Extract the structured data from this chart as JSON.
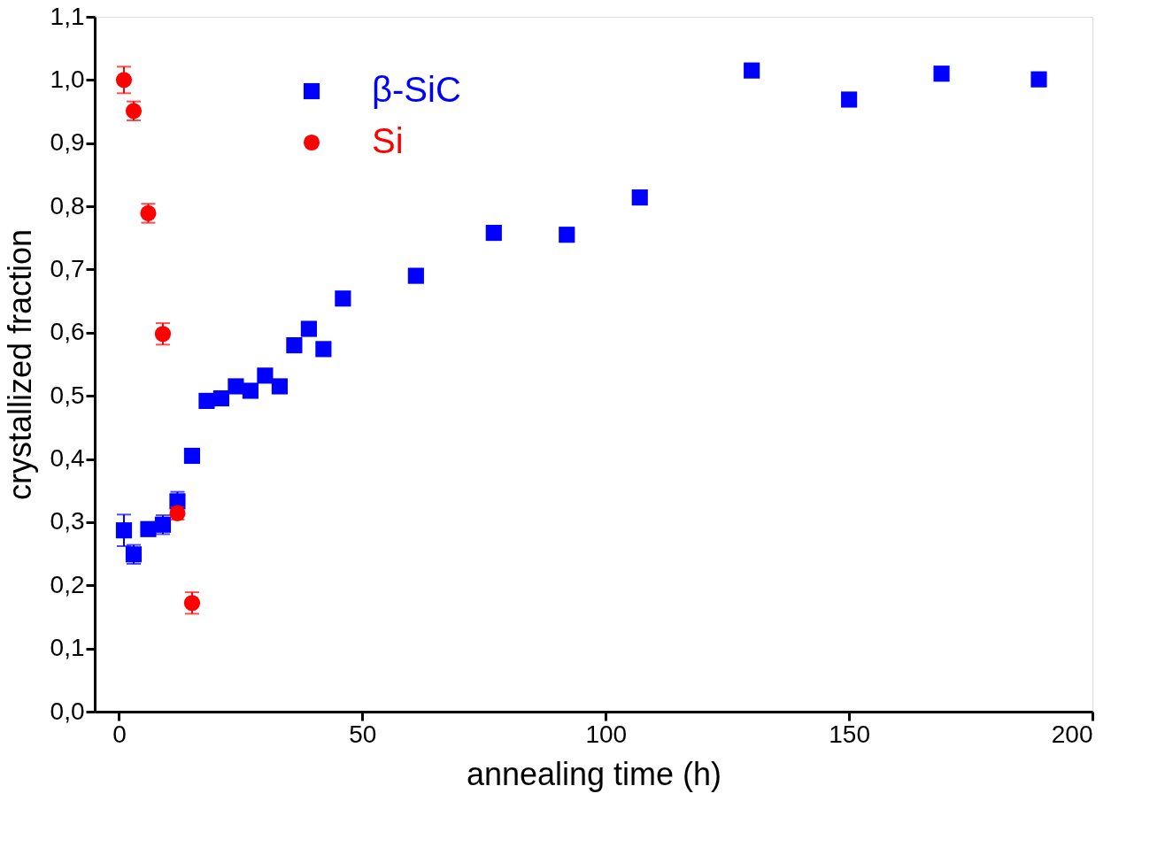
{
  "chart_data": {
    "type": "scatter",
    "xlabel": "annealing time (h)",
    "ylabel": "crystallized fraction",
    "xlim": [
      -5,
      200
    ],
    "xticks": [
      0,
      50,
      100,
      150,
      200
    ],
    "ylim": [
      0,
      1.1
    ],
    "yticks": [
      {
        "value": 0,
        "label": "0,0"
      },
      {
        "value": 0.1,
        "label": "0,1"
      },
      {
        "value": 0.2,
        "label": "0,2"
      },
      {
        "value": 0.3,
        "label": "0,3"
      },
      {
        "value": 0.4,
        "label": "0,4"
      },
      {
        "value": 0.5,
        "label": "0,5"
      },
      {
        "value": 0.6,
        "label": "0,6"
      },
      {
        "value": 0.7,
        "label": "0,7"
      },
      {
        "value": 0.8,
        "label": "0,8"
      },
      {
        "value": 0.9,
        "label": "0,9"
      },
      {
        "value": 1.0,
        "label": "1,0"
      },
      {
        "value": 1.1,
        "label": "1,1"
      }
    ],
    "grid": false,
    "legend": "top",
    "series": [
      {
        "name": "β-SiC",
        "color": "#0000ff",
        "marker": "square",
        "x": [
          1,
          3,
          6,
          9,
          12,
          15,
          18,
          21,
          24,
          27,
          30,
          33,
          36,
          39,
          42,
          46,
          61,
          77,
          92,
          107,
          130,
          150,
          169,
          189
        ],
        "values": [
          0.287,
          0.249,
          0.289,
          0.296,
          0.333,
          0.405,
          0.492,
          0.496,
          0.515,
          0.508,
          0.532,
          0.515,
          0.58,
          0.606,
          0.574,
          0.654,
          0.69,
          0.758,
          0.755,
          0.814,
          1.015,
          0.969,
          1.01,
          1.001
        ],
        "errors": [
          0.025,
          0.015,
          0.01,
          0.015,
          0.015,
          null,
          0.01,
          0.01,
          0.01,
          0.01,
          0.01,
          0.01,
          null,
          null,
          null,
          0.01,
          null,
          null,
          null,
          null,
          null,
          null,
          null,
          null
        ]
      },
      {
        "name": "Si",
        "color": "#ff0000",
        "marker": "circle",
        "x": [
          1,
          3,
          6,
          9,
          12,
          15
        ],
        "values": [
          1.0,
          0.951,
          0.789,
          0.598,
          0.314,
          0.172
        ],
        "errors": [
          0.021,
          0.015,
          0.015,
          0.017,
          0.01,
          0.017
        ]
      }
    ]
  }
}
